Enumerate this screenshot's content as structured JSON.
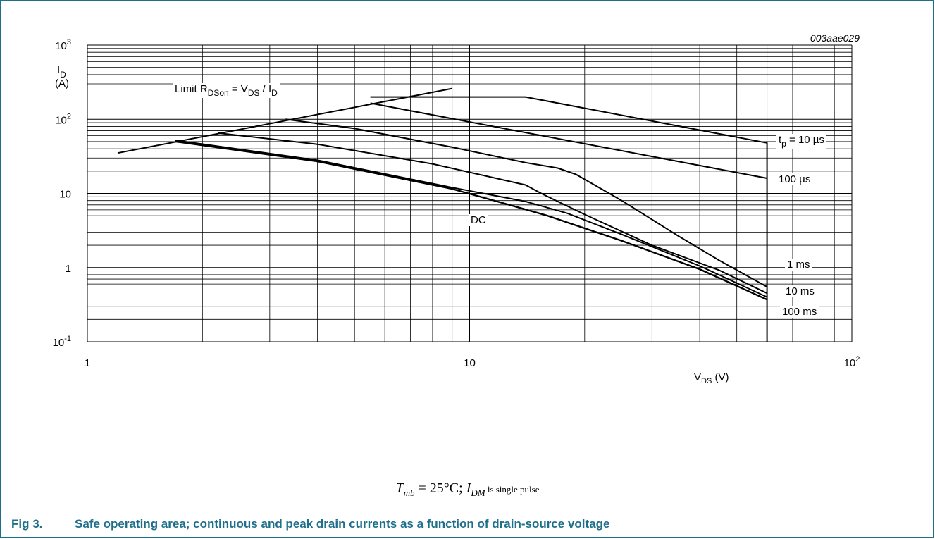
{
  "figure_code": "003aae029",
  "caption": {
    "number": "Fig 3.",
    "text": "Safe operating area; continuous and peak drain currents as a function of drain-source voltage"
  },
  "condition": {
    "t_sym": "T",
    "t_sub": "mb",
    "eq": " = 25°C; ",
    "i_sym": "I",
    "i_sub": "DM",
    "tail": " is single pulse"
  },
  "colors": {
    "caption": "#1f6f8b",
    "frame": "#1f6f8b",
    "lines": "#000000",
    "grid": "#000000"
  },
  "chart_data": {
    "type": "line",
    "x_scale": "log",
    "y_scale": "log",
    "xlim": [
      1,
      100
    ],
    "ylim": [
      0.1,
      1000
    ],
    "grid": true,
    "x_ticks": [
      {
        "value": 1,
        "base": "1",
        "exp": ""
      },
      {
        "value": 10,
        "base": "10",
        "exp": ""
      },
      {
        "value": 100,
        "base": "10",
        "exp": "2"
      }
    ],
    "y_ticks": [
      {
        "value": 1000,
        "base": "10",
        "exp": "3"
      },
      {
        "value": 100,
        "base": "10",
        "exp": "2"
      },
      {
        "value": 10,
        "base": "10",
        "exp": ""
      },
      {
        "value": 1,
        "base": "1",
        "exp": ""
      },
      {
        "value": 0.1,
        "base": "10",
        "exp": "-1"
      }
    ],
    "xlabel": {
      "sym": "V",
      "sub": "DS",
      "unit": " (V)"
    },
    "ylabel": {
      "sym": "I",
      "sub": "D",
      "unit": "(A)"
    },
    "limit_label": {
      "pre": "Limit R",
      "sub1": "DSon",
      "mid": " = V",
      "sub2": "DS",
      "slash": " / I",
      "sub3": "D"
    },
    "series": [
      {
        "name": "Limit RDSon",
        "points": [
          [
            1.2,
            35
          ],
          [
            9,
            260
          ]
        ]
      },
      {
        "name": "tp = 10 µs",
        "points": [
          [
            5.5,
            200
          ],
          [
            14,
            200
          ],
          [
            60,
            48
          ],
          [
            60,
            0.1
          ]
        ]
      },
      {
        "name": "100 µs",
        "points": [
          [
            5.5,
            165
          ],
          [
            60,
            16
          ]
        ]
      },
      {
        "name": "1 ms",
        "points": [
          [
            3.3,
            100
          ],
          [
            5,
            75
          ],
          [
            9,
            42
          ],
          [
            14,
            26
          ],
          [
            17,
            22
          ],
          [
            19,
            18
          ],
          [
            25,
            8
          ],
          [
            35,
            2.7
          ],
          [
            45,
            1.25
          ],
          [
            60,
            0.55
          ]
        ]
      },
      {
        "name": "10 ms",
        "points": [
          [
            2.2,
            65
          ],
          [
            4,
            46
          ],
          [
            8,
            25
          ],
          [
            14,
            13
          ],
          [
            15.5,
            9.8
          ],
          [
            20,
            5.2
          ],
          [
            30,
            2.0
          ],
          [
            45,
            0.92
          ],
          [
            60,
            0.45
          ]
        ]
      },
      {
        "name": "100 ms",
        "points": [
          [
            1.7,
            52
          ],
          [
            4,
            28
          ],
          [
            9,
            12
          ],
          [
            14,
            7.8
          ],
          [
            18,
            5.4
          ],
          [
            25,
            2.8
          ],
          [
            40,
            1.05
          ],
          [
            60,
            0.4
          ]
        ]
      },
      {
        "name": "DC",
        "points": [
          [
            1.7,
            50
          ],
          [
            4,
            27
          ],
          [
            9,
            11.5
          ],
          [
            12,
            7.6
          ],
          [
            16,
            5.0
          ],
          [
            25,
            2.3
          ],
          [
            40,
            0.95
          ],
          [
            60,
            0.37
          ]
        ]
      }
    ],
    "curve_labels": [
      {
        "series": "tp = 10 µs",
        "pre": "t",
        "sub": "p",
        "rest": " = 10 µs",
        "x": 60,
        "y": 46
      },
      {
        "series": "100 µs",
        "pre": "100 µs",
        "sub": "",
        "rest": "",
        "x": 60,
        "y": 15
      },
      {
        "series": "1 ms",
        "pre": "1 ms",
        "sub": "",
        "rest": "",
        "x": 60,
        "y": 0.95
      },
      {
        "series": "10 ms",
        "pre": "10 ms",
        "sub": "",
        "rest": "",
        "x": 60,
        "y": 0.47
      },
      {
        "series": "100 ms",
        "pre": "100 ms",
        "sub": "",
        "rest": "",
        "x": 60,
        "y": 0.29
      },
      {
        "series": "DC",
        "pre": "DC",
        "sub": "",
        "rest": "",
        "x": 10,
        "y": 3.7
      }
    ]
  }
}
